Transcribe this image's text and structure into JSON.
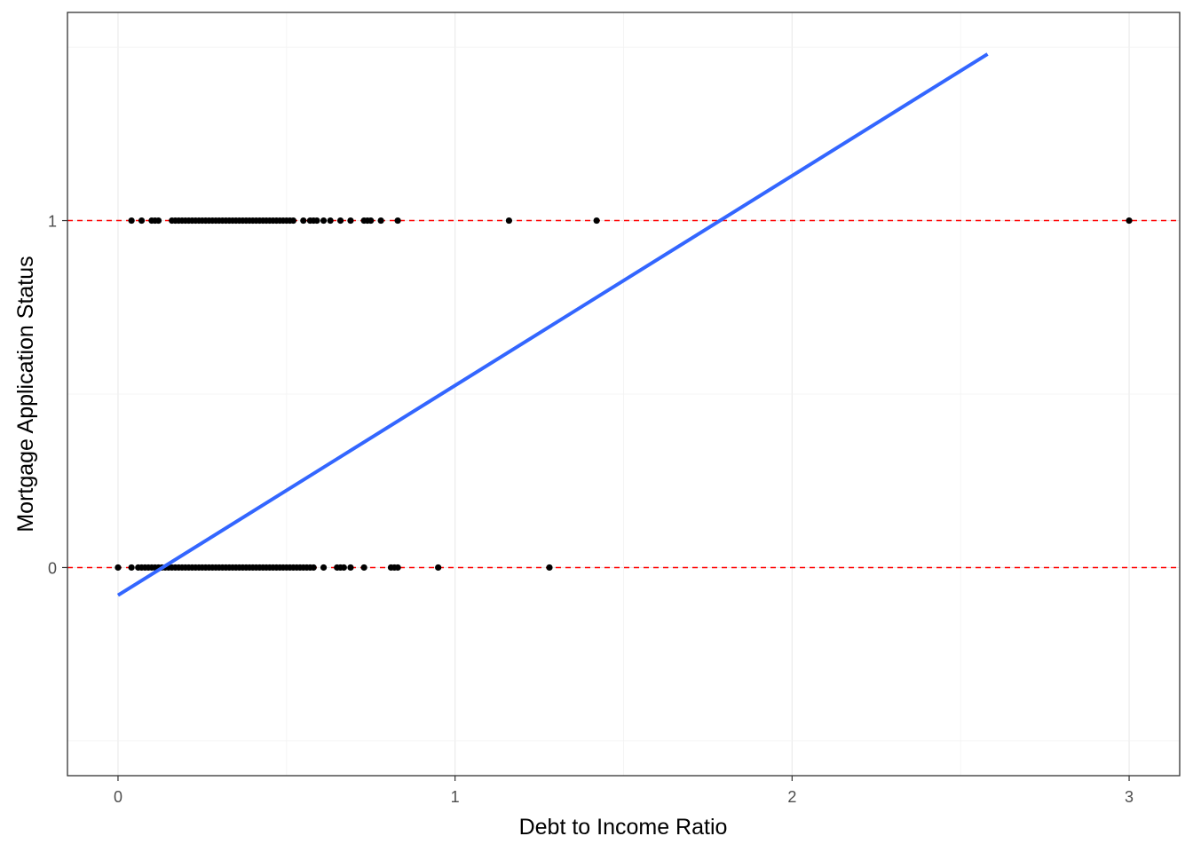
{
  "chart_data": {
    "type": "scatter",
    "title": "",
    "xlabel": "Debt to Income Ratio",
    "ylabel": "Mortgage Application Status",
    "xlim": [
      -0.15,
      3.15
    ],
    "ylim": [
      -0.6,
      1.6
    ],
    "x_ticks": [
      0,
      1,
      2,
      3
    ],
    "x_tick_labels": [
      "0",
      "1",
      "2",
      "3"
    ],
    "y_ticks": [
      0,
      1
    ],
    "y_tick_labels": [
      "0",
      "1"
    ],
    "grid": true,
    "legend": "none",
    "series": [
      {
        "kind": "points",
        "color": "#000000",
        "y1_x": [
          0.04,
          0.07,
          0.1,
          0.11,
          0.12,
          0.16,
          0.17,
          0.18,
          0.19,
          0.2,
          0.21,
          0.22,
          0.23,
          0.24,
          0.25,
          0.26,
          0.27,
          0.28,
          0.29,
          0.3,
          0.31,
          0.32,
          0.33,
          0.34,
          0.35,
          0.36,
          0.37,
          0.38,
          0.39,
          0.4,
          0.41,
          0.42,
          0.43,
          0.44,
          0.45,
          0.46,
          0.47,
          0.48,
          0.49,
          0.5,
          0.51,
          0.52,
          0.55,
          0.57,
          0.58,
          0.59,
          0.61,
          0.63,
          0.66,
          0.69,
          0.73,
          0.74,
          0.75,
          0.78,
          0.83,
          1.16,
          1.42,
          3.0
        ],
        "y0_x": [
          0.0,
          0.04,
          0.06,
          0.07,
          0.08,
          0.09,
          0.1,
          0.11,
          0.12,
          0.13,
          0.14,
          0.15,
          0.16,
          0.17,
          0.18,
          0.19,
          0.2,
          0.21,
          0.22,
          0.23,
          0.24,
          0.25,
          0.26,
          0.27,
          0.28,
          0.29,
          0.3,
          0.31,
          0.32,
          0.33,
          0.34,
          0.35,
          0.36,
          0.37,
          0.38,
          0.39,
          0.4,
          0.41,
          0.42,
          0.43,
          0.44,
          0.45,
          0.46,
          0.47,
          0.48,
          0.49,
          0.5,
          0.51,
          0.52,
          0.53,
          0.54,
          0.55,
          0.56,
          0.57,
          0.58,
          0.61,
          0.65,
          0.66,
          0.67,
          0.69,
          0.73,
          0.81,
          0.82,
          0.83,
          0.95,
          1.28
        ]
      },
      {
        "kind": "fit-line",
        "color": "#3366ff",
        "x": [
          0.0,
          2.58
        ],
        "y": [
          -0.08,
          1.48
        ]
      },
      {
        "kind": "reference-lines",
        "color": "#ff0000",
        "linestyle": "dashed",
        "y": [
          0,
          1
        ]
      }
    ]
  }
}
